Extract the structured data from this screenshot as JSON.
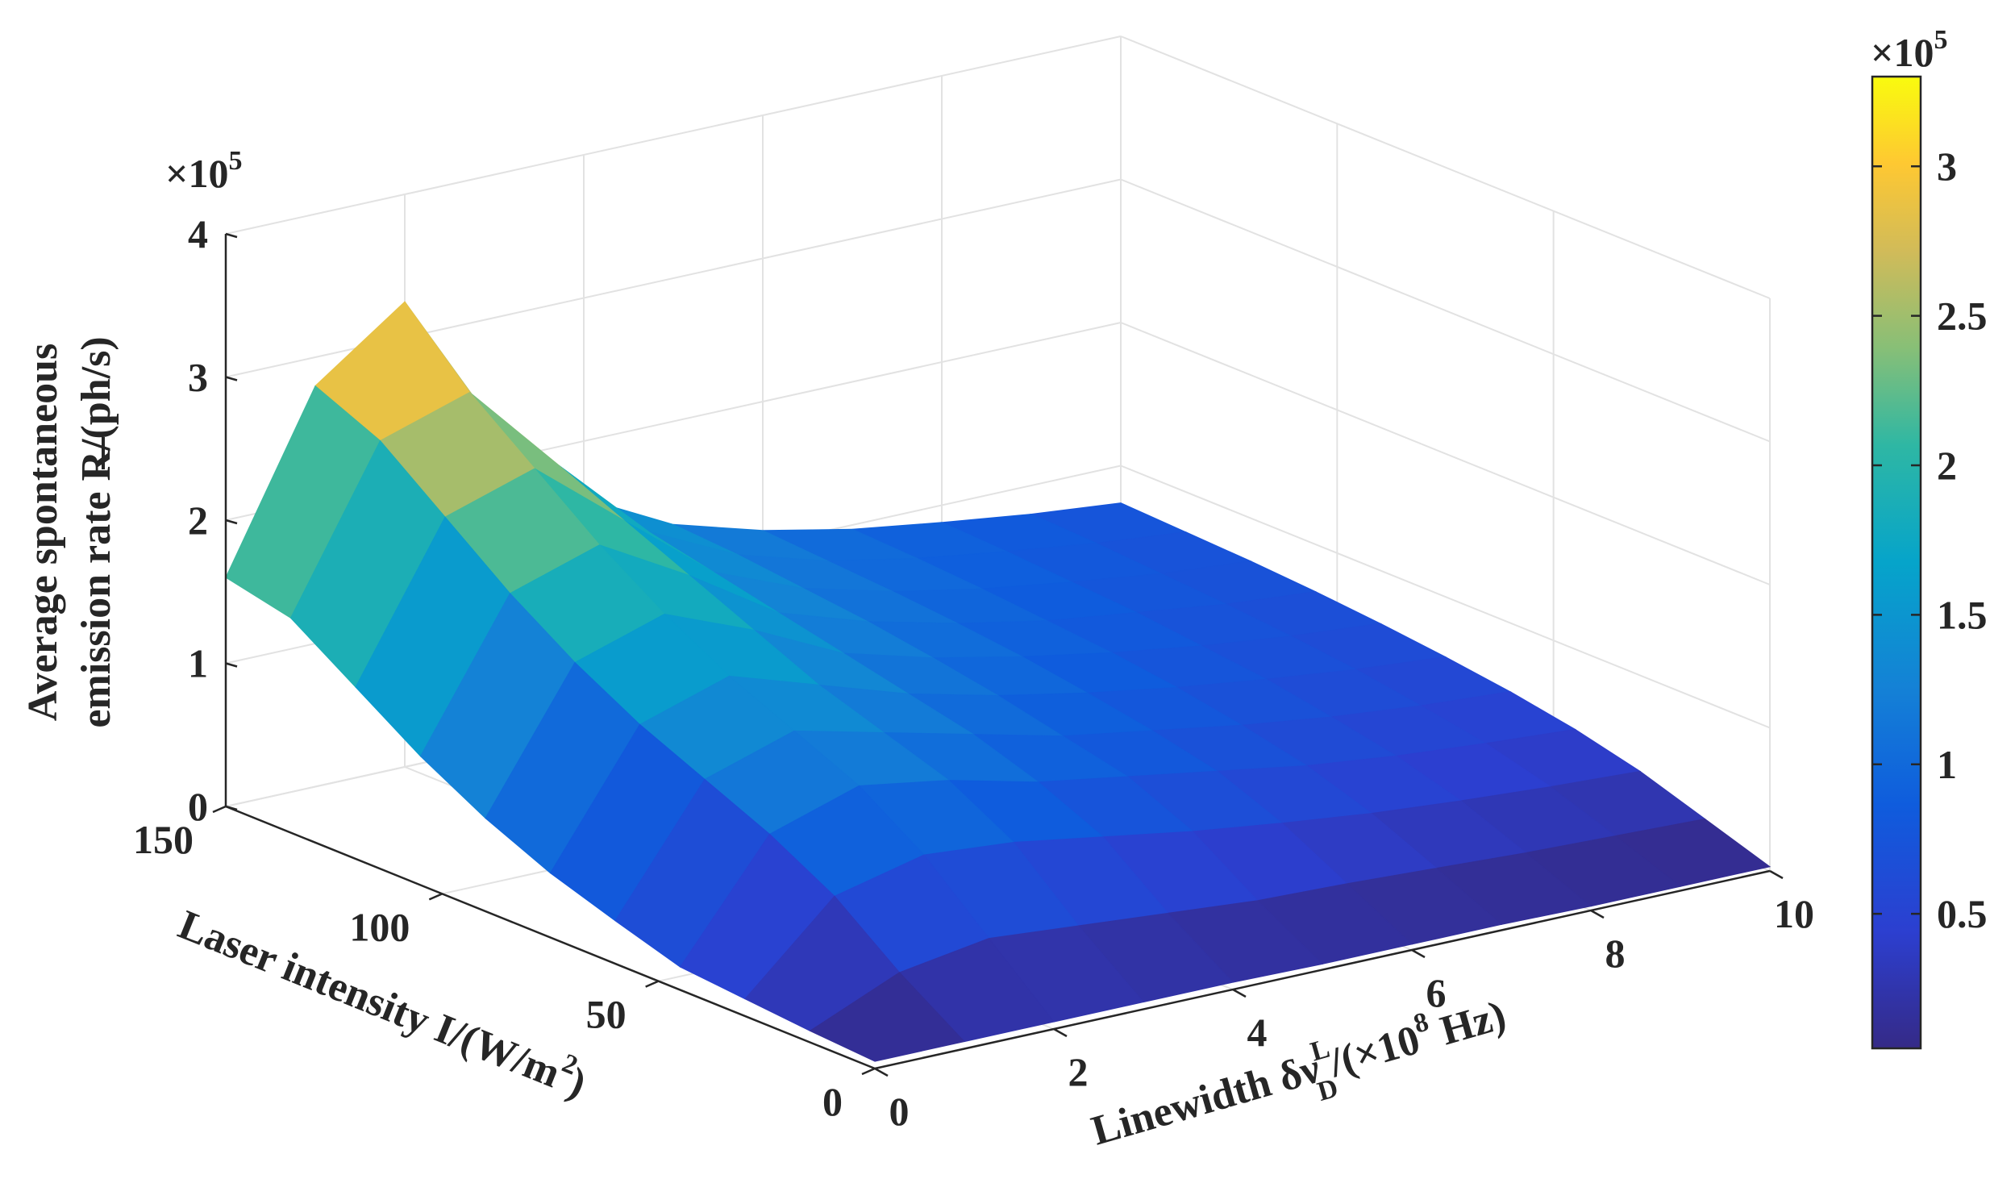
{
  "chart_data": {
    "type": "surface",
    "x": {
      "label_main": "Linewidth δν",
      "label_sup": "L",
      "label_sub": "D",
      "label_tail": "/(×10",
      "label_tail_sup": "8",
      "label_end": " Hz)",
      "ticks": [
        "0",
        "2",
        "4",
        "6",
        "8",
        "10"
      ],
      "range": [
        0,
        10
      ]
    },
    "y": {
      "label_main": "Laser intensity I/(W/m",
      "label_sup": "2",
      "label_end": ")",
      "ticks": [
        "0",
        "50",
        "100",
        "150"
      ],
      "range": [
        0,
        150
      ]
    },
    "z": {
      "label_line1": "Average spontaneous",
      "label_line2": "emission rate R/(ph/s)",
      "multiplier": "×10",
      "multiplier_exp": "5",
      "ticks": [
        "0",
        "1",
        "2",
        "3",
        "4"
      ],
      "range": [
        0,
        4
      ]
    },
    "colorbar": {
      "colormap": "parula",
      "multiplier": "×10",
      "multiplier_exp": "5",
      "ticks": [
        "0.5",
        "1",
        "1.5",
        "2",
        "2.5",
        "3"
      ],
      "range": [
        0.05,
        3.3
      ]
    },
    "grid": true,
    "series": [
      {
        "x": [
          0,
          0,
          0,
          0,
          0,
          0,
          0,
          0,
          0,
          0,
          0
        ],
        "y": [
          0,
          15,
          30,
          45,
          60,
          75,
          90,
          105,
          120,
          135,
          150
        ],
        "z": [
          0.05,
          0.08,
          0.12,
          0.16,
          0.3,
          0.45,
          0.65,
          0.9,
          1.2,
          1.5,
          1.6
        ],
        "note": ""
      }
    ],
    "grid_values": {
      "x_values": [
        0,
        1,
        2,
        3,
        4,
        5,
        6,
        7,
        8,
        9,
        10
      ],
      "y_values": [
        0,
        15,
        30,
        45,
        60,
        75,
        90,
        105,
        120,
        135,
        150
      ],
      "z": [
        [
          0.05,
          0.08,
          0.12,
          0.16,
          0.3,
          0.45,
          0.65,
          0.9,
          1.2,
          1.5,
          1.6
        ],
        [
          0.05,
          0.35,
          0.7,
          0.95,
          1.15,
          1.35,
          1.6,
          1.9,
          2.25,
          2.6,
          2.8
        ],
        [
          0.05,
          0.45,
          0.85,
          1.15,
          1.35,
          1.55,
          1.8,
          2.1,
          2.45,
          2.8,
          3.25
        ],
        [
          0.05,
          0.4,
          0.8,
          1.05,
          1.2,
          1.35,
          1.55,
          1.75,
          1.95,
          2.15,
          2.25
        ],
        [
          0.05,
          0.35,
          0.7,
          0.9,
          1.05,
          1.15,
          1.25,
          1.35,
          1.45,
          1.55,
          1.6
        ],
        [
          0.04,
          0.3,
          0.6,
          0.8,
          0.9,
          1.0,
          1.08,
          1.15,
          1.2,
          1.25,
          1.28
        ],
        [
          0.04,
          0.28,
          0.52,
          0.7,
          0.8,
          0.88,
          0.95,
          1.0,
          1.04,
          1.07,
          1.1
        ],
        [
          0.04,
          0.25,
          0.45,
          0.6,
          0.7,
          0.78,
          0.84,
          0.88,
          0.92,
          0.95,
          0.97
        ],
        [
          0.03,
          0.22,
          0.4,
          0.53,
          0.62,
          0.7,
          0.75,
          0.8,
          0.83,
          0.86,
          0.88
        ],
        [
          0.03,
          0.2,
          0.36,
          0.48,
          0.56,
          0.63,
          0.68,
          0.72,
          0.75,
          0.78,
          0.8
        ],
        [
          0.03,
          0.18,
          0.33,
          0.44,
          0.52,
          0.58,
          0.63,
          0.67,
          0.7,
          0.72,
          0.74
        ]
      ]
    }
  }
}
